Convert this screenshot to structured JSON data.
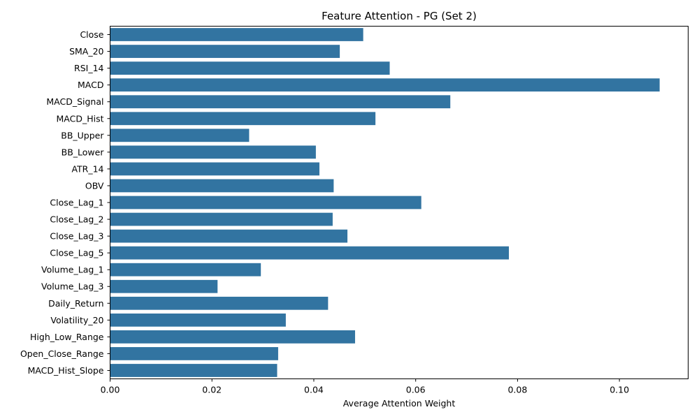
{
  "chart_data": {
    "type": "bar",
    "orientation": "horizontal",
    "title": "Feature Attention - PG (Set 2)",
    "xlabel": "Average Attention Weight",
    "ylabel": "",
    "xlim": [
      0,
      0.1135
    ],
    "xticks": [
      "0.00",
      "0.02",
      "0.04",
      "0.06",
      "0.08",
      "0.10"
    ],
    "xtick_values": [
      0,
      0.02,
      0.04,
      0.06,
      0.08,
      0.1
    ],
    "bar_color": "#3274a1",
    "grid": false,
    "categories": [
      "Close",
      "SMA_20",
      "RSI_14",
      "MACD",
      "MACD_Signal",
      "MACD_Hist",
      "BB_Upper",
      "BB_Lower",
      "ATR_14",
      "OBV",
      "Close_Lag_1",
      "Close_Lag_2",
      "Close_Lag_3",
      "Close_Lag_5",
      "Volume_Lag_1",
      "Volume_Lag_3",
      "Daily_Return",
      "Volatility_20",
      "High_Low_Range",
      "Open_Close_Range",
      "MACD_Hist_Slope"
    ],
    "values": [
      0.0497,
      0.0451,
      0.0549,
      0.1079,
      0.0668,
      0.0521,
      0.0273,
      0.0404,
      0.0411,
      0.0439,
      0.0611,
      0.0437,
      0.0466,
      0.0783,
      0.0296,
      0.0211,
      0.0428,
      0.0345,
      0.0481,
      0.033,
      0.0328
    ]
  }
}
